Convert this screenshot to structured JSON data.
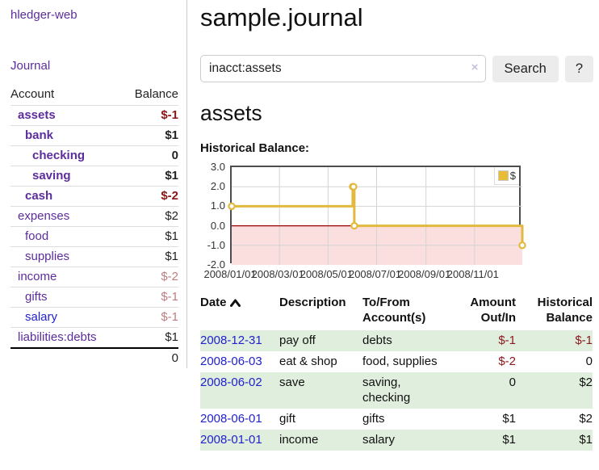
{
  "app": {
    "brand": "hledger-web",
    "nav_journal": "Journal"
  },
  "sidebar": {
    "headers": {
      "account": "Account",
      "balance": "Balance"
    },
    "rows": [
      {
        "name": "assets",
        "level": 1,
        "bold": true,
        "balance": "$-1",
        "balance_style": "neg",
        "link_color": "purple"
      },
      {
        "name": "bank",
        "level": 2,
        "bold": true,
        "balance": "$1",
        "balance_style": "",
        "link_color": "purple"
      },
      {
        "name": "checking",
        "level": 3,
        "bold": true,
        "balance": "0",
        "balance_style": "",
        "link_color": "purple"
      },
      {
        "name": "saving",
        "level": 3,
        "bold": true,
        "balance": "$1",
        "balance_style": "",
        "link_color": "purple"
      },
      {
        "name": "cash",
        "level": 2,
        "bold": true,
        "balance": "$-2",
        "balance_style": "neg",
        "link_color": "purple"
      },
      {
        "name": "expenses",
        "level": 1,
        "bold": false,
        "balance": "$2",
        "balance_style": "",
        "link_color": "purple"
      },
      {
        "name": "food",
        "level": 2,
        "bold": false,
        "balance": "$1",
        "balance_style": "",
        "link_color": "purple"
      },
      {
        "name": "supplies",
        "level": 2,
        "bold": false,
        "balance": "$1",
        "balance_style": "",
        "link_color": "purple"
      },
      {
        "name": "income",
        "level": 1,
        "bold": false,
        "balance": "$-2",
        "balance_style": "negl",
        "link_color": "purple"
      },
      {
        "name": "gifts",
        "level": 2,
        "bold": false,
        "balance": "$-1",
        "balance_style": "negl",
        "link_color": "purple"
      },
      {
        "name": "salary",
        "level": 2,
        "bold": false,
        "balance": "$-1",
        "balance_style": "negl",
        "link_color": "blue"
      },
      {
        "name": "liabilities:debts",
        "level": 1,
        "bold": false,
        "balance": "$1",
        "balance_style": "",
        "link_color": "purple"
      }
    ],
    "total": "0"
  },
  "main": {
    "title": "sample.journal",
    "search": {
      "value": "inacct:assets",
      "clear_icon": "×",
      "button_label": "Search",
      "help_label": "?"
    },
    "account_heading": "assets",
    "chart_label": "Historical Balance:"
  },
  "register": {
    "headers": {
      "date": "Date",
      "description": "Description",
      "accounts": "To/From Account(s)",
      "amount": "Amount Out/In",
      "balance": "Historical Balance"
    },
    "rows": [
      {
        "date": "2008-12-31",
        "description": "pay off",
        "accounts": "debts",
        "amount": "$-1",
        "amount_neg": true,
        "balance": "$-1",
        "balance_neg": true
      },
      {
        "date": "2008-06-03",
        "description": "eat & shop",
        "accounts": "food, supplies",
        "amount": "$-2",
        "amount_neg": true,
        "balance": "0",
        "balance_neg": false
      },
      {
        "date": "2008-06-02",
        "description": "save",
        "accounts": "saving, checking",
        "amount": "0",
        "amount_neg": false,
        "balance": "$2",
        "balance_neg": false
      },
      {
        "date": "2008-06-01",
        "description": "gift",
        "accounts": "gifts",
        "amount": "$1",
        "amount_neg": false,
        "balance": "$2",
        "balance_neg": false
      },
      {
        "date": "2008-01-01",
        "description": "income",
        "accounts": "salary",
        "amount": "$1",
        "amount_neg": false,
        "balance": "$1",
        "balance_neg": false
      }
    ]
  },
  "chart_data": {
    "type": "line",
    "title": "Historical Balance",
    "step": "after",
    "series": [
      {
        "name": "$",
        "color": "#e2b93c",
        "points": [
          {
            "date": "2008-01-01",
            "day": 0,
            "value": 1
          },
          {
            "date": "2008-06-01",
            "day": 152,
            "value": 2
          },
          {
            "date": "2008-06-02",
            "day": 153,
            "value": 2
          },
          {
            "date": "2008-06-03",
            "day": 154,
            "value": 0
          },
          {
            "date": "2008-12-31",
            "day": 365,
            "value": -1
          }
        ]
      }
    ],
    "x_domain_days": [
      0,
      365
    ],
    "x_ticks": [
      {
        "day": 0,
        "label": "2008/01/01"
      },
      {
        "day": 60,
        "label": "2008/03/01"
      },
      {
        "day": 121,
        "label": "2008/05/01"
      },
      {
        "day": 182,
        "label": "2008/07/01"
      },
      {
        "day": 244,
        "label": "2008/09/01"
      },
      {
        "day": 305,
        "label": "2008/11/01"
      }
    ],
    "y_ticks": [
      3.0,
      2.0,
      1.0,
      0.0,
      -1.0,
      -2.0
    ],
    "ylim": [
      -2,
      3
    ],
    "grid": true,
    "legend": {
      "label": "$",
      "position": "top-right"
    },
    "colors": {
      "negative_region_fill": "#fbdede",
      "zero_line": "#990000",
      "grid_line": "#d4d4d4",
      "plot_border": "#4d4d4d",
      "marker_fill": "#ffffff"
    }
  }
}
